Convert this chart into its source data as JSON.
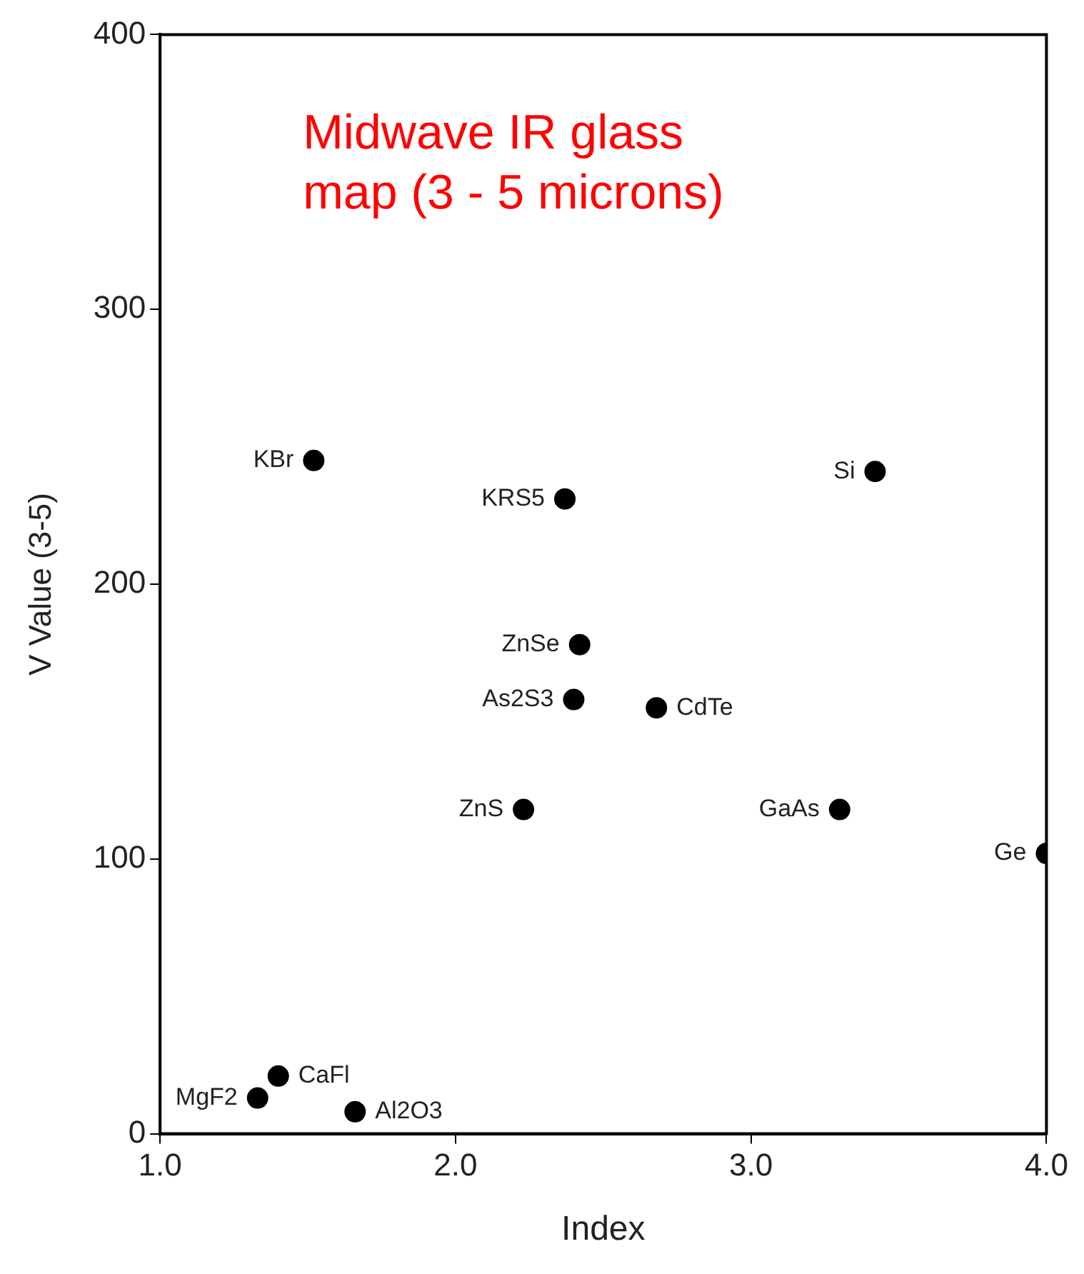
{
  "chart_data": {
    "type": "scatter",
    "title": "Midwave IR glass map (3 - 5 microns)",
    "xlabel": "Index",
    "ylabel": "V Value (3-5)",
    "series": [
      {
        "color": "#000000",
        "x": [
          1.52,
          2.37,
          3.42,
          2.42,
          2.4,
          2.68,
          2.23,
          3.3,
          4.0,
          1.4,
          1.33,
          1.66
        ],
        "values": [
          245,
          231,
          241,
          178,
          158,
          155,
          118,
          118,
          102,
          21,
          13,
          8
        ]
      }
    ],
    "annotations": [
      {
        "text": "KBr",
        "x": 1.52,
        "y": 245
      },
      {
        "text": "KRS5",
        "x": 2.37,
        "y": 231
      },
      {
        "text": "Si",
        "x": 3.42,
        "y": 241
      },
      {
        "text": "ZnSe",
        "x": 2.42,
        "y": 178
      },
      {
        "text": "As2S3",
        "x": 2.4,
        "y": 158
      },
      {
        "text": "CdTe",
        "x": 2.68,
        "y": 155
      },
      {
        "text": "ZnS",
        "x": 2.23,
        "y": 118
      },
      {
        "text": "GaAs",
        "x": 3.3,
        "y": 118
      },
      {
        "text": "Ge",
        "x": 4.0,
        "y": 102
      },
      {
        "text": "CaFl",
        "x": 1.4,
        "y": 21
      },
      {
        "text": "MgF2",
        "x": 1.33,
        "y": 13
      },
      {
        "text": "Al2O3",
        "x": 1.66,
        "y": 8
      }
    ],
    "xlim": [
      1.0,
      4.0
    ],
    "xticks": [
      {
        "value": 1,
        "label": "1.0"
      },
      {
        "value": 2,
        "label": "2.0"
      },
      {
        "value": 3,
        "label": "3.0"
      },
      {
        "value": 4,
        "label": "4.0"
      }
    ],
    "ylim": [
      0,
      400
    ],
    "yticks": [
      0,
      100,
      200,
      300,
      400
    ],
    "grid": false,
    "legend": false,
    "marker": "circle"
  }
}
